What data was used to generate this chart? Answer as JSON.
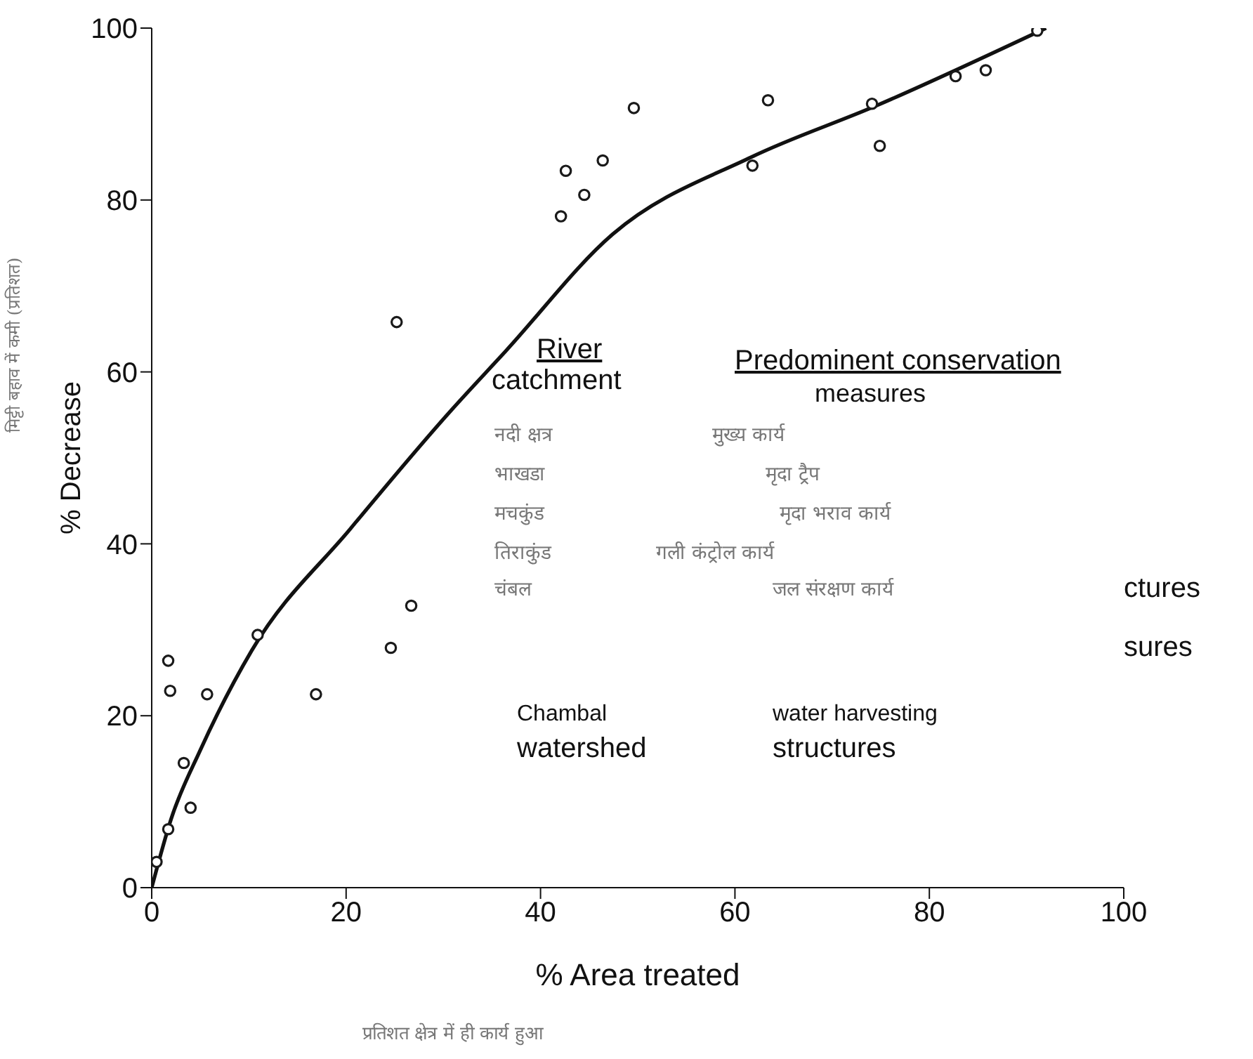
{
  "chart_data": {
    "type": "scatter",
    "xlabel": "% Area treated",
    "ylabel": "% Decrease",
    "xlim": [
      0,
      100
    ],
    "ylim": [
      0,
      100
    ],
    "xticks": [
      0,
      20,
      40,
      60,
      80,
      100
    ],
    "yticks": [
      0,
      20,
      40,
      60,
      80,
      100
    ],
    "series": [
      {
        "marker": "circle",
        "color": "#1a1a1a",
        "x": [
          0.5,
          1.7,
          1.7,
          1.9,
          3.3,
          4.0,
          5.7,
          10.9,
          16.9,
          24.6,
          25.2,
          26.7,
          42.1,
          42.6,
          44.5,
          46.4,
          49.6,
          61.8,
          63.4,
          74.1,
          74.9,
          82.7,
          85.8,
          91.1
        ],
        "values": [
          3,
          6.8,
          26.4,
          22.9,
          14.5,
          9.3,
          22.5,
          29.4,
          22.5,
          27.9,
          65.8,
          32.8,
          78.1,
          83.4,
          80.6,
          84.6,
          90.7,
          84,
          91.6,
          91.2,
          86.3,
          94.4,
          95.1,
          99.7
        ]
      },
      {
        "type": "line",
        "color": "#111111",
        "x": [
          0,
          2,
          5,
          10.3,
          20.4,
          30.7,
          36.4,
          47.4,
          61.7,
          74.6,
          92
        ],
        "values": [
          0,
          8,
          16,
          27.6,
          41.7,
          55.4,
          62.4,
          76,
          85,
          91,
          100
        ]
      }
    ],
    "annotations": [
      "River",
      "catchment",
      "Predominent conservation",
      "measures",
      "नदी क्षत्र",
      "मुख्य कार्य",
      "भाखडा",
      "मृदा ट्रैप",
      "मचकुंड",
      "मृदा भराव कार्य",
      "तिराकुंड",
      "गली कंट्रोल कार्य",
      "चंबल",
      "जल संरक्षण कार्य",
      "ctures",
      "sures",
      "Chambal",
      "watershed",
      "water harvesting",
      "structures",
      "मिट्टी बहाव में कमी (प्रतिशत)",
      "प्रतिशत क्षेत्र में ही कार्य हुआ"
    ]
  }
}
